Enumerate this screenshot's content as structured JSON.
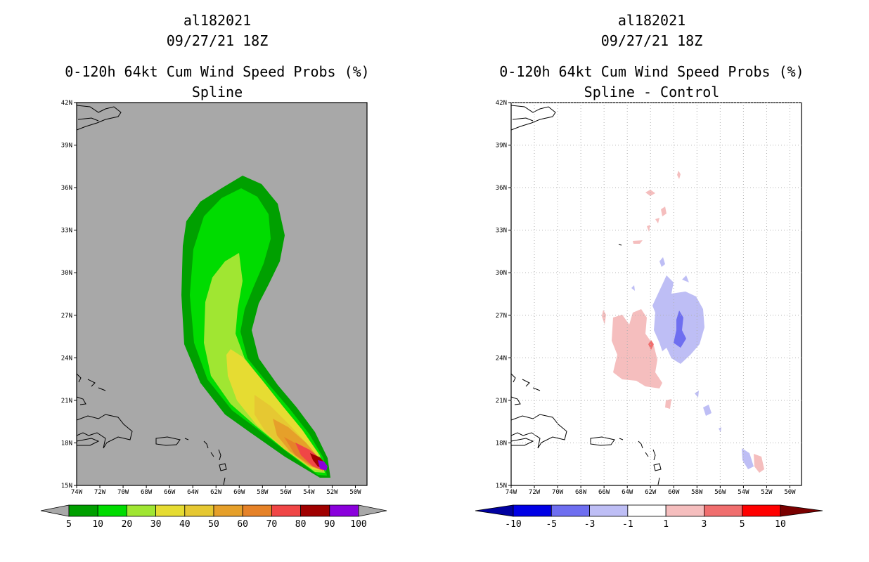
{
  "panels": [
    {
      "title_line1": "al182021",
      "title_line2": "09/27/21 18Z",
      "title_line3": "0-120h 64kt Cum Wind Speed Probs (%)",
      "title_line4": "Spline",
      "background_color": "#a8a8a8",
      "colorbar": {
        "labels": [
          "5",
          "10",
          "20",
          "30",
          "40",
          "50",
          "60",
          "70",
          "80",
          "90",
          "100"
        ],
        "colors": [
          "#00a000",
          "#00dc00",
          "#a0e632",
          "#e6dc32",
          "#e6c832",
          "#e6a02a",
          "#e68228",
          "#f04646",
          "#a00000",
          "#8a00dc"
        ],
        "under_color": "#a8a8a8",
        "over_color": "#a8a8a8"
      }
    },
    {
      "title_line1": "al182021",
      "title_line2": "09/27/21 18Z",
      "title_line3": "0-120h 64kt Cum Wind Speed Probs (%)",
      "title_line4": "Spline - Control",
      "background_color": "#ffffff",
      "colorbar": {
        "labels": [
          "-10",
          "-5",
          "-3",
          "-1",
          "1",
          "3",
          "5",
          "10"
        ],
        "colors": [
          "#0000e6",
          "#6e6ef0",
          "#bebef5",
          "#ffffff",
          "#f5bebe",
          "#f06e6e",
          "#ff0000"
        ],
        "under_color": "#0000a0",
        "over_color": "#7a0000"
      }
    }
  ],
  "axes": {
    "lon_labels": [
      "74W",
      "72W",
      "70W",
      "68W",
      "66W",
      "64W",
      "62W",
      "60W",
      "58W",
      "56W",
      "54W",
      "52W",
      "50W"
    ],
    "lat_labels": [
      "15N",
      "18N",
      "21N",
      "24N",
      "27N",
      "30N",
      "33N",
      "36N",
      "39N",
      "42N"
    ],
    "lon_range": [
      -74,
      -49
    ],
    "lat_range": [
      15,
      42
    ]
  }
}
